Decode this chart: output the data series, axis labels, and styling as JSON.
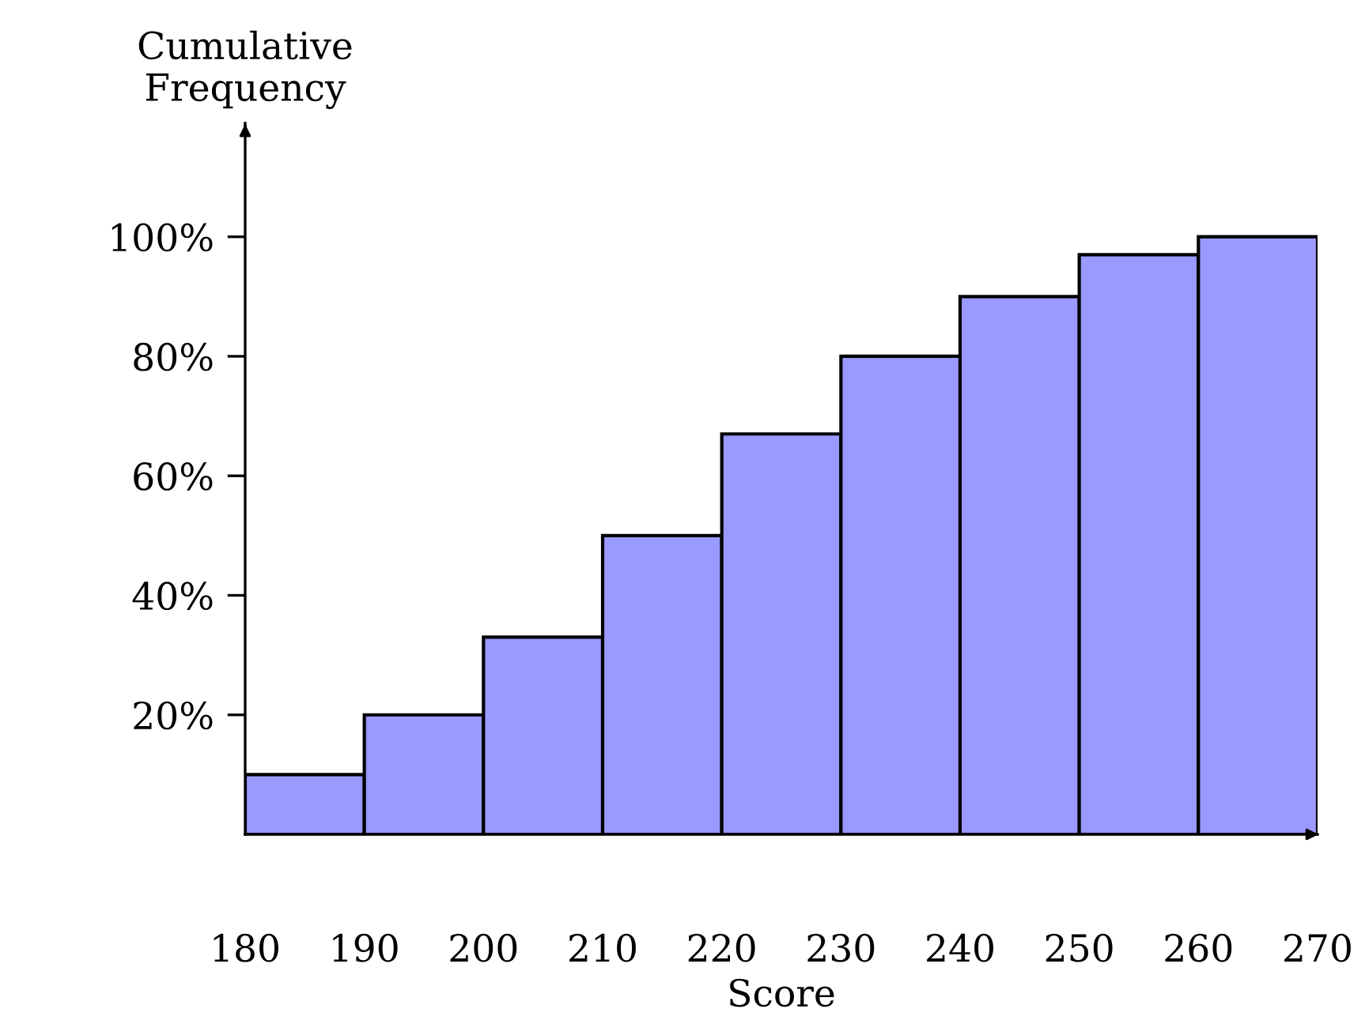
{
  "chart_data": {
    "type": "histogram",
    "xlabel": "Score",
    "ylabel": "Cumulative\nFrequency",
    "bins": [
      180,
      190,
      200,
      210,
      220,
      230,
      240,
      250,
      260,
      270
    ],
    "values": [
      10,
      20,
      33,
      50,
      67,
      80,
      90,
      97,
      100
    ],
    "color": "#9999ff",
    "xlim": [
      180,
      270
    ],
    "xticks": [
      180,
      190,
      200,
      210,
      220,
      230,
      240,
      250,
      260,
      270
    ],
    "ylim": [
      0,
      119
    ],
    "yticks": [
      {
        "value": 20,
        "label": "20%"
      },
      {
        "value": 40,
        "label": "40%"
      },
      {
        "value": 60,
        "label": "60%"
      },
      {
        "value": 80,
        "label": "80%"
      },
      {
        "value": 100,
        "label": "100%"
      }
    ],
    "grid": false,
    "legend": false
  }
}
